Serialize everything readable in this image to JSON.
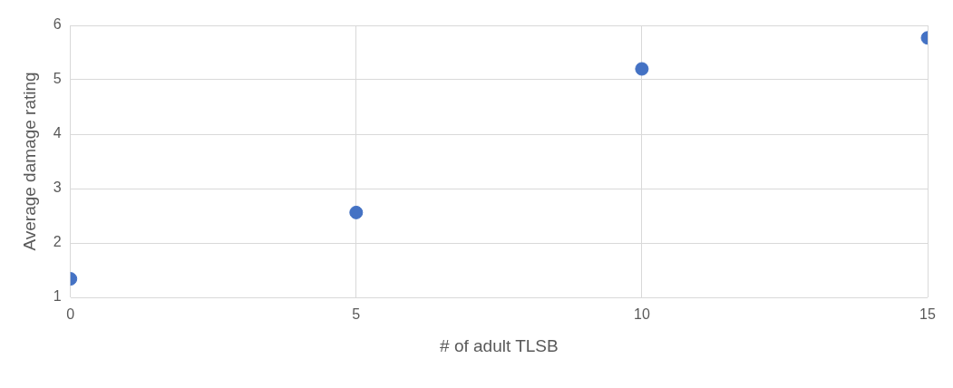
{
  "chart_data": {
    "type": "scatter",
    "xlabel": "# of adult TLSB",
    "ylabel": "Average damage rating",
    "x": [
      0,
      5,
      10,
      15
    ],
    "series": [
      {
        "color": "#4472c4",
        "values": [
          1.34,
          2.56,
          5.2,
          5.77
        ]
      }
    ],
    "xlim": [
      0,
      15
    ],
    "xticks": [
      0,
      5,
      10,
      15
    ],
    "ylim": [
      1,
      6
    ],
    "yticks": [
      1,
      2,
      3,
      4,
      5,
      6
    ],
    "grid": true,
    "legend": false,
    "marker": "circle"
  }
}
